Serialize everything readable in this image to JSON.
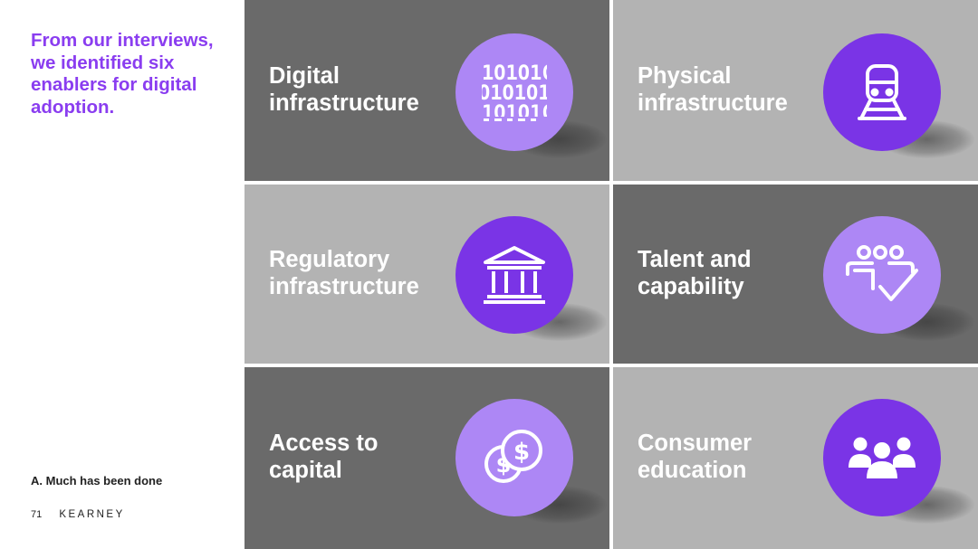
{
  "headline": "From our interviews, we identified six enablers for digital adoption.",
  "section_label": "A. Much has been done",
  "footer": {
    "page_number": "71",
    "brand": "KEARNEY"
  },
  "colors": {
    "accent": "#8a3df0",
    "tile_dark": "#6a6a6a",
    "tile_light": "#b3b3b3",
    "circle_light_violet": "#ad87f5",
    "circle_deep_violet": "#7a34e6"
  },
  "enablers": [
    {
      "title": "Digital\ninfrastructure",
      "icon": "binary-code-icon"
    },
    {
      "title": "Physical\ninfrastructure",
      "icon": "train-icon"
    },
    {
      "title": "Regulatory\ninfrastructure",
      "icon": "government-building-icon"
    },
    {
      "title": "Talent and\ncapability",
      "icon": "team-check-icon"
    },
    {
      "title": "Access to\ncapital",
      "icon": "coins-icon"
    },
    {
      "title": "Consumer\neducation",
      "icon": "people-group-icon"
    }
  ]
}
